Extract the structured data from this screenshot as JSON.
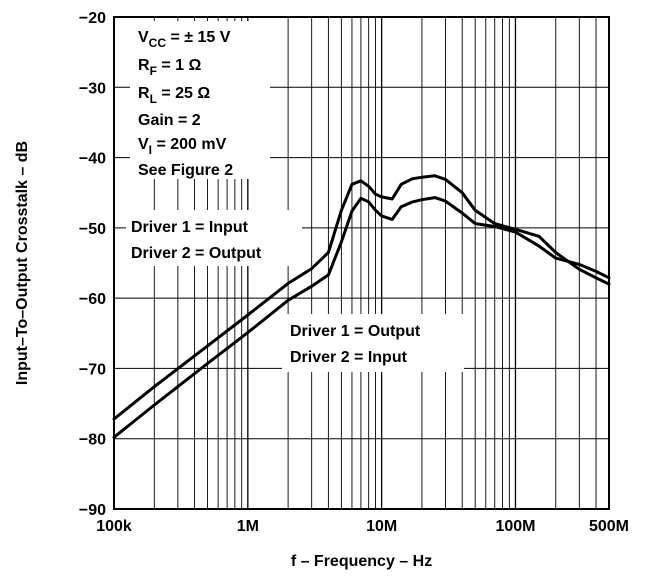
{
  "chart_data": {
    "type": "line",
    "title": "",
    "xlabel": "f – Frequency – Hz",
    "ylabel": "Input–To–Output Crosstalk – dB",
    "x_scale": "log",
    "xlim": [
      100000,
      500000000
    ],
    "ylim": [
      -90,
      -20
    ],
    "x_ticks": [
      {
        "value": 100000,
        "label": "100k"
      },
      {
        "value": 1000000,
        "label": "1M"
      },
      {
        "value": 10000000,
        "label": "10M"
      },
      {
        "value": 100000000,
        "label": "100M"
      },
      {
        "value": 500000000,
        "label": "500M"
      }
    ],
    "y_ticks": [
      {
        "value": -20,
        "label": "−20"
      },
      {
        "value": -30,
        "label": "−30"
      },
      {
        "value": -40,
        "label": "−40"
      },
      {
        "value": -50,
        "label": "−50"
      },
      {
        "value": -60,
        "label": "−60"
      },
      {
        "value": -70,
        "label": "−70"
      },
      {
        "value": -80,
        "label": "−80"
      },
      {
        "value": -90,
        "label": "−90"
      }
    ],
    "grid": true,
    "conditions": [
      {
        "main": "V",
        "sub": "CC",
        "rest": " = ± 15 V"
      },
      {
        "main": "R",
        "sub": "F",
        "rest": " = 1 Ω"
      },
      {
        "main": "R",
        "sub": "L",
        "rest": " = 25 Ω"
      },
      {
        "main": "Gain = 2",
        "sub": "",
        "rest": ""
      },
      {
        "main": "V",
        "sub": "I",
        "rest": " = 200 mV"
      },
      {
        "main": "See Figure 2",
        "sub": "",
        "rest": ""
      }
    ],
    "series_labels": {
      "upper": [
        "Driver 1 = Input",
        "Driver 2 = Output"
      ],
      "lower": [
        "Driver 1 = Output",
        "Driver 2 = Input"
      ]
    },
    "series": [
      {
        "x": [
          100000,
          200000,
          500000,
          1000000,
          2000000,
          3000000,
          4000000,
          5000000,
          6000000,
          7000000,
          8000000,
          9000000,
          10000000,
          12000000,
          14000000,
          17000000,
          20000000,
          25000000,
          30000000,
          40000000,
          50000000,
          70000000,
          100000000,
          150000000,
          200000000,
          300000000,
          400000000,
          500000000
        ],
        "values": [
          -77.2,
          -72.6,
          -66.8,
          -62.4,
          -57.9,
          -55.8,
          -53.5,
          -47.5,
          -43.8,
          -43.3,
          -44.1,
          -45.2,
          -45.6,
          -45.9,
          -43.8,
          -43.0,
          -42.8,
          -42.6,
          -43.1,
          -45.0,
          -47.5,
          -49.4,
          -50.2,
          -51.2,
          -53.5,
          -55.9,
          -57.1,
          -58.0
        ]
      },
      {
        "x": [
          100000,
          200000,
          500000,
          1000000,
          2000000,
          3000000,
          4000000,
          5000000,
          6000000,
          7000000,
          8000000,
          9000000,
          10000000,
          12000000,
          14000000,
          17000000,
          20000000,
          25000000,
          30000000,
          40000000,
          50000000,
          70000000,
          100000000,
          150000000,
          200000000,
          300000000,
          400000000,
          500000000
        ],
        "values": [
          -79.8,
          -75.2,
          -69.3,
          -64.9,
          -60.3,
          -58.3,
          -56.7,
          -52.0,
          -47.6,
          -45.8,
          -46.3,
          -47.5,
          -48.3,
          -48.8,
          -47.0,
          -46.3,
          -46.0,
          -45.7,
          -46.2,
          -47.9,
          -49.4,
          -49.8,
          -50.6,
          -52.6,
          -54.3,
          -55.2,
          -56.2,
          -57.1
        ]
      }
    ]
  }
}
